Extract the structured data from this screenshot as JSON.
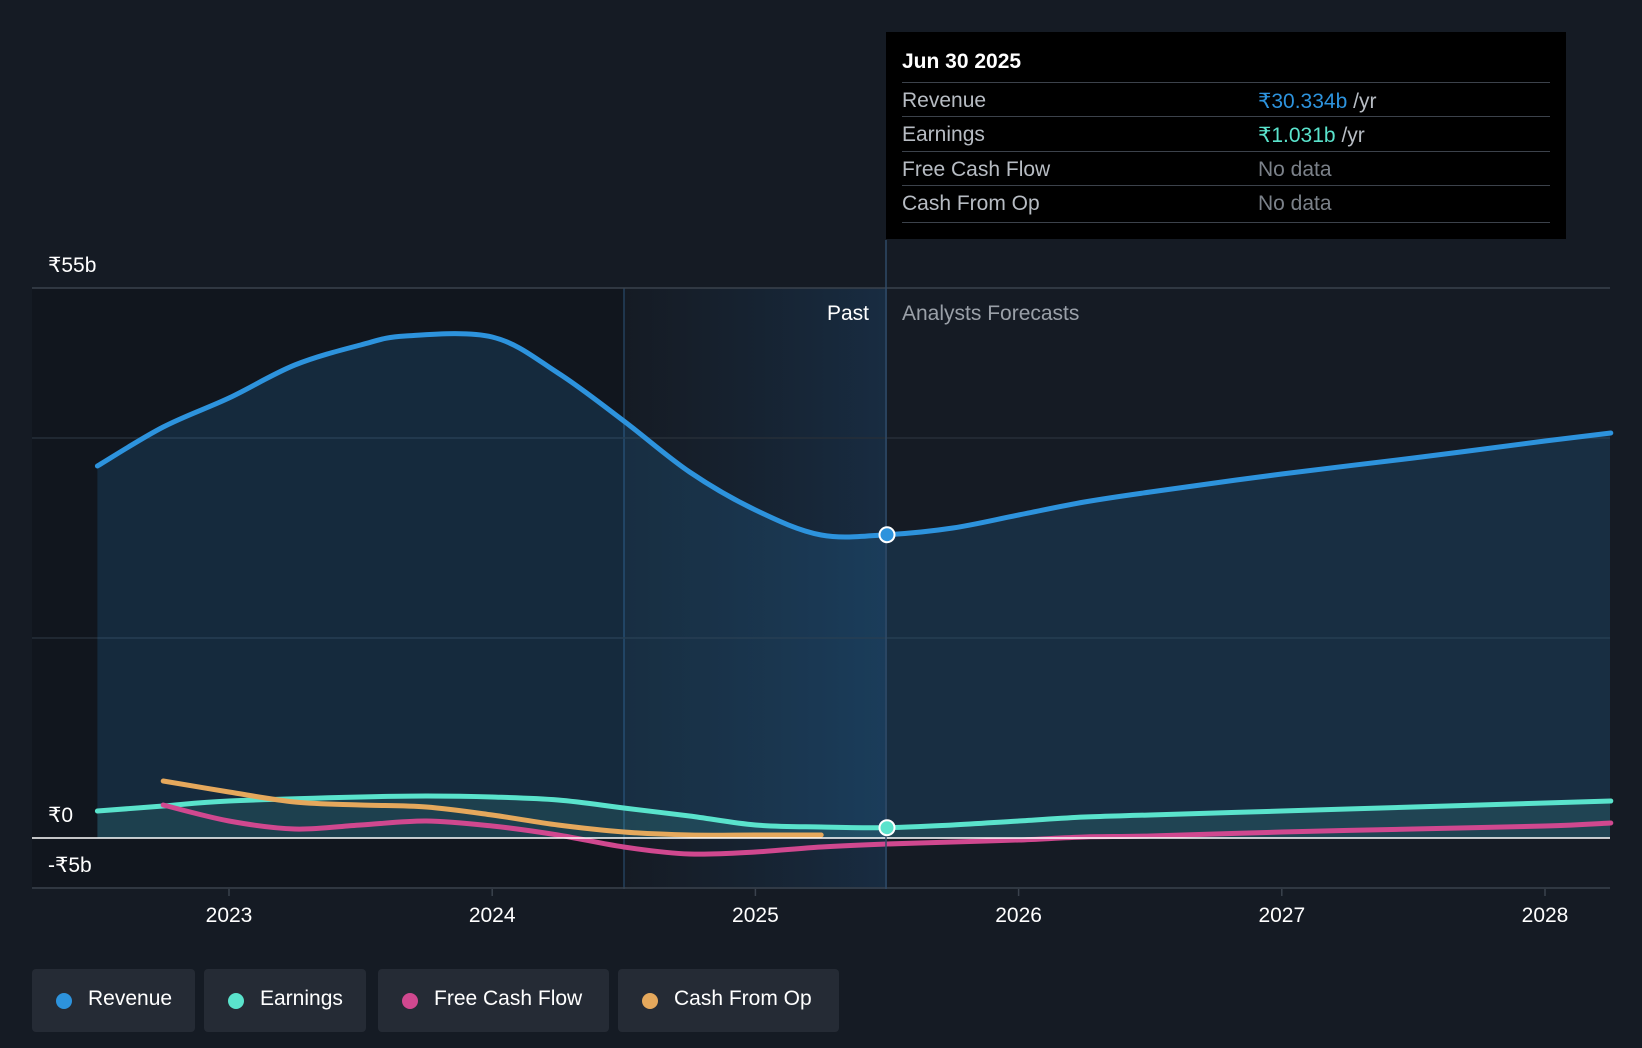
{
  "chart_data": {
    "type": "area",
    "y_axis_labels": {
      "top": "₹55b",
      "zero": "₹0",
      "bottom": "-₹5b"
    },
    "ylim": [
      -5,
      55
    ],
    "units": "₹ billions",
    "x_ticks": [
      "2023",
      "2024",
      "2025",
      "2026",
      "2027",
      "2028"
    ],
    "divider_date": "Jun 30 2025",
    "past_label": "Past",
    "forecast_label": "Analysts Forecasts",
    "series": [
      {
        "name": "Revenue",
        "color": "#2d93dd",
        "fill": true,
        "points": [
          [
            2022.5,
            37.2
          ],
          [
            2022.75,
            41.1
          ],
          [
            2023.0,
            44.0
          ],
          [
            2023.25,
            47.3
          ],
          [
            2023.5,
            49.3
          ],
          [
            2023.67,
            50.2
          ],
          [
            2024.0,
            50.1
          ],
          [
            2024.25,
            46.5
          ],
          [
            2024.5,
            41.7
          ],
          [
            2024.75,
            36.6
          ],
          [
            2025.0,
            32.8
          ],
          [
            2025.25,
            30.3
          ],
          [
            2025.5,
            30.33
          ],
          [
            2025.75,
            31.0
          ],
          [
            2026.0,
            32.3
          ],
          [
            2026.25,
            33.6
          ],
          [
            2026.5,
            34.6
          ],
          [
            2027.0,
            36.4
          ],
          [
            2027.5,
            38.0
          ],
          [
            2028.0,
            39.7
          ],
          [
            2028.25,
            40.5
          ]
        ]
      },
      {
        "name": "Earnings",
        "color": "#5ae3cc",
        "fill": true,
        "points": [
          [
            2022.5,
            2.7
          ],
          [
            2022.75,
            3.2
          ],
          [
            2023.0,
            3.7
          ],
          [
            2023.5,
            4.1
          ],
          [
            2023.75,
            4.2
          ],
          [
            2024.0,
            4.1
          ],
          [
            2024.25,
            3.8
          ],
          [
            2024.5,
            3.0
          ],
          [
            2024.75,
            2.2
          ],
          [
            2025.0,
            1.3
          ],
          [
            2025.25,
            1.1
          ],
          [
            2025.5,
            1.031
          ],
          [
            2025.75,
            1.3
          ],
          [
            2026.0,
            1.7
          ],
          [
            2026.25,
            2.1
          ],
          [
            2026.5,
            2.3
          ],
          [
            2027.0,
            2.7
          ],
          [
            2027.5,
            3.1
          ],
          [
            2028.0,
            3.5
          ],
          [
            2028.25,
            3.7
          ]
        ]
      },
      {
        "name": "Free Cash Flow",
        "color": "#d0488f",
        "fill": false,
        "points": [
          [
            2022.75,
            3.3
          ],
          [
            2023.0,
            1.7
          ],
          [
            2023.25,
            0.9
          ],
          [
            2023.5,
            1.3
          ],
          [
            2023.75,
            1.7
          ],
          [
            2024.0,
            1.2
          ],
          [
            2024.25,
            0.3
          ],
          [
            2024.5,
            -0.9
          ],
          [
            2024.75,
            -1.6
          ],
          [
            2025.0,
            -1.4
          ],
          [
            2025.25,
            -0.9
          ],
          [
            2025.5,
            -0.6
          ],
          [
            2025.75,
            -0.4
          ],
          [
            2026.0,
            -0.2
          ],
          [
            2026.25,
            0.1
          ],
          [
            2026.5,
            0.2
          ],
          [
            2027.0,
            0.6
          ],
          [
            2027.5,
            0.9
          ],
          [
            2028.0,
            1.2
          ],
          [
            2028.25,
            1.5
          ]
        ]
      },
      {
        "name": "Cash From Op",
        "color": "#e5a85c",
        "fill": false,
        "points": [
          [
            2022.75,
            5.7
          ],
          [
            2023.0,
            4.6
          ],
          [
            2023.25,
            3.6
          ],
          [
            2023.5,
            3.3
          ],
          [
            2023.75,
            3.1
          ],
          [
            2024.0,
            2.3
          ],
          [
            2024.25,
            1.3
          ],
          [
            2024.5,
            0.6
          ],
          [
            2024.75,
            0.3
          ],
          [
            2025.0,
            0.3
          ],
          [
            2025.25,
            0.3
          ]
        ]
      }
    ]
  },
  "tooltip": {
    "date": "Jun 30 2025",
    "rows": [
      {
        "label": "Revenue",
        "value": "₹30.334b",
        "unit": "/yr",
        "color": "#2d93dd"
      },
      {
        "label": "Earnings",
        "value": "₹1.031b",
        "unit": "/yr",
        "color": "#5ae3cc"
      },
      {
        "label": "Free Cash Flow",
        "value": "No data",
        "unit": ""
      },
      {
        "label": "Cash From Op",
        "value": "No data",
        "unit": ""
      }
    ]
  },
  "legend": [
    {
      "label": "Revenue",
      "color": "#2d93dd"
    },
    {
      "label": "Earnings",
      "color": "#5ae3cc"
    },
    {
      "label": "Free Cash Flow",
      "color": "#d0488f"
    },
    {
      "label": "Cash From Op",
      "color": "#e5a85c"
    }
  ]
}
